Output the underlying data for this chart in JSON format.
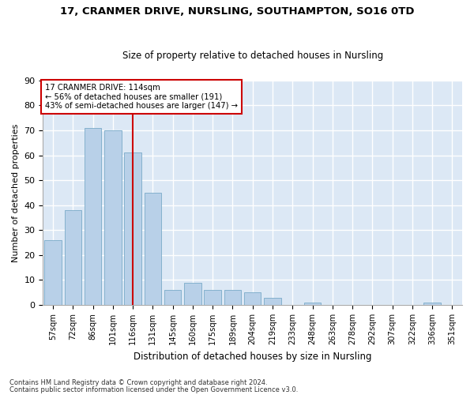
{
  "title": "17, CRANMER DRIVE, NURSLING, SOUTHAMPTON, SO16 0TD",
  "subtitle": "Size of property relative to detached houses in Nursling",
  "xlabel": "Distribution of detached houses by size in Nursling",
  "ylabel": "Number of detached properties",
  "categories": [
    "57sqm",
    "72sqm",
    "86sqm",
    "101sqm",
    "116sqm",
    "131sqm",
    "145sqm",
    "160sqm",
    "175sqm",
    "189sqm",
    "204sqm",
    "219sqm",
    "233sqm",
    "248sqm",
    "263sqm",
    "278sqm",
    "292sqm",
    "307sqm",
    "322sqm",
    "336sqm",
    "351sqm"
  ],
  "values": [
    26,
    38,
    71,
    70,
    61,
    45,
    6,
    9,
    6,
    6,
    5,
    3,
    0,
    1,
    0,
    0,
    0,
    0,
    0,
    1,
    0
  ],
  "bar_color": "#b8d0e8",
  "bar_edge_color": "#7aaac8",
  "vline_x_index": 4,
  "vline_color": "#cc0000",
  "annotation_text": "17 CRANMER DRIVE: 114sqm\n← 56% of detached houses are smaller (191)\n43% of semi-detached houses are larger (147) →",
  "annotation_box_color": "#ffffff",
  "annotation_box_edge_color": "#cc0000",
  "background_color": "#dce8f5",
  "grid_color": "#ffffff",
  "fig_background": "#ffffff",
  "ylim": [
    0,
    90
  ],
  "yticks": [
    0,
    10,
    20,
    30,
    40,
    50,
    60,
    70,
    80,
    90
  ],
  "footer_line1": "Contains HM Land Registry data © Crown copyright and database right 2024.",
  "footer_line2": "Contains public sector information licensed under the Open Government Licence v3.0."
}
